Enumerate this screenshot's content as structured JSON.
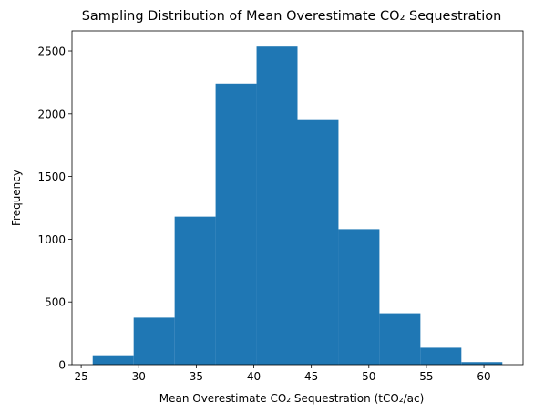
{
  "chart_data": {
    "type": "bar",
    "title": "Sampling Distribution of Mean Overestimate CO₂ Sequestration",
    "xlabel": "Mean Overestimate CO₂ Sequestration (tCO₂/ac)",
    "ylabel": "Frequency",
    "bin_edges": [
      26.0,
      29.56,
      33.12,
      36.68,
      40.24,
      43.8,
      47.36,
      50.92,
      54.48,
      58.04,
      61.6
    ],
    "values": [
      75,
      375,
      1180,
      2240,
      2535,
      1950,
      1080,
      410,
      135,
      20
    ],
    "xlim": [
      24.2,
      63.4
    ],
    "ylim": [
      0,
      2660
    ],
    "xticks": [
      25,
      30,
      35,
      40,
      45,
      50,
      55,
      60
    ],
    "yticks": [
      0,
      500,
      1000,
      1500,
      2000,
      2500
    ],
    "bar_color": "#1f77b4",
    "grid": false,
    "legend": "none"
  }
}
